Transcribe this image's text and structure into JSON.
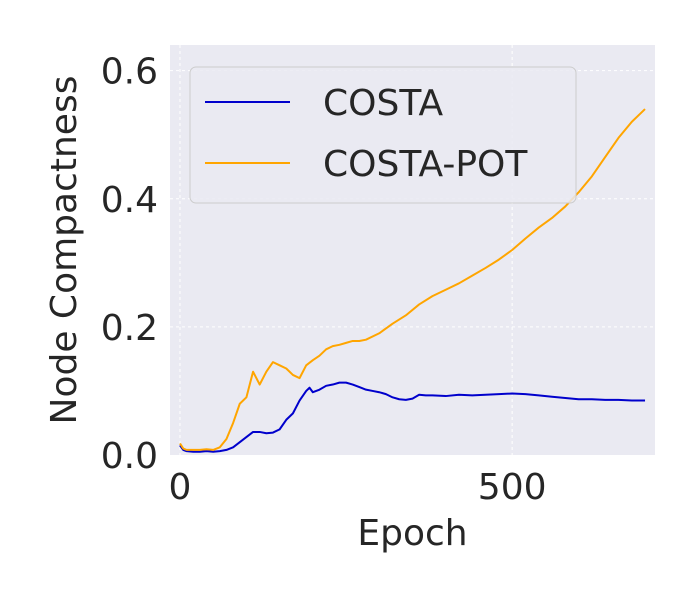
{
  "chart_data": {
    "type": "line",
    "title": "",
    "xlabel": "Epoch",
    "ylabel": "Node Compactness",
    "xlim": [
      -15,
      715
    ],
    "ylim": [
      0.0,
      0.64
    ],
    "xticks": [
      0,
      500
    ],
    "xtick_labels": [
      "0",
      "500"
    ],
    "yticks": [
      0.0,
      0.2,
      0.4,
      0.6
    ],
    "ytick_labels": [
      "0.0",
      "0.2",
      "0.4",
      "0.6"
    ],
    "grid": true,
    "legend": "upper-left",
    "colors": {
      "plot_background": "#eaeaf2",
      "grid": "#ffffff",
      "legend_background": "#eaeaf2",
      "legend_border": "#cccccc",
      "text": "#262626"
    },
    "series": [
      {
        "name": "COSTA",
        "color": "#0000cc",
        "x": [
          0,
          5,
          10,
          20,
          30,
          40,
          50,
          60,
          70,
          80,
          90,
          100,
          110,
          120,
          130,
          140,
          150,
          160,
          170,
          180,
          190,
          195,
          200,
          210,
          220,
          230,
          240,
          250,
          260,
          270,
          280,
          290,
          300,
          310,
          320,
          330,
          340,
          350,
          360,
          370,
          380,
          400,
          420,
          440,
          460,
          480,
          500,
          520,
          540,
          560,
          580,
          600,
          620,
          640,
          660,
          680,
          700
        ],
        "y": [
          0.015,
          0.008,
          0.006,
          0.005,
          0.005,
          0.006,
          0.005,
          0.006,
          0.008,
          0.012,
          0.02,
          0.028,
          0.036,
          0.036,
          0.034,
          0.035,
          0.04,
          0.055,
          0.065,
          0.085,
          0.1,
          0.105,
          0.098,
          0.102,
          0.108,
          0.11,
          0.113,
          0.113,
          0.11,
          0.106,
          0.102,
          0.1,
          0.098,
          0.095,
          0.09,
          0.087,
          0.086,
          0.088,
          0.094,
          0.093,
          0.093,
          0.092,
          0.094,
          0.093,
          0.094,
          0.095,
          0.096,
          0.095,
          0.093,
          0.091,
          0.089,
          0.087,
          0.087,
          0.086,
          0.086,
          0.085,
          0.085
        ]
      },
      {
        "name": "COSTA-POT",
        "color": "#ffa500",
        "x": [
          0,
          5,
          10,
          20,
          30,
          40,
          50,
          60,
          70,
          80,
          90,
          100,
          110,
          120,
          130,
          140,
          150,
          160,
          170,
          180,
          190,
          200,
          210,
          220,
          230,
          240,
          250,
          260,
          270,
          280,
          300,
          320,
          340,
          360,
          380,
          400,
          420,
          440,
          460,
          480,
          500,
          520,
          540,
          560,
          580,
          600,
          620,
          640,
          660,
          680,
          700
        ],
        "y": [
          0.018,
          0.01,
          0.008,
          0.008,
          0.008,
          0.009,
          0.008,
          0.012,
          0.025,
          0.05,
          0.08,
          0.09,
          0.13,
          0.11,
          0.13,
          0.145,
          0.14,
          0.135,
          0.125,
          0.12,
          0.14,
          0.148,
          0.155,
          0.165,
          0.17,
          0.172,
          0.175,
          0.178,
          0.178,
          0.18,
          0.19,
          0.205,
          0.218,
          0.235,
          0.248,
          0.258,
          0.268,
          0.28,
          0.292,
          0.305,
          0.32,
          0.338,
          0.355,
          0.37,
          0.388,
          0.41,
          0.435,
          0.465,
          0.495,
          0.52,
          0.54
        ]
      }
    ]
  }
}
